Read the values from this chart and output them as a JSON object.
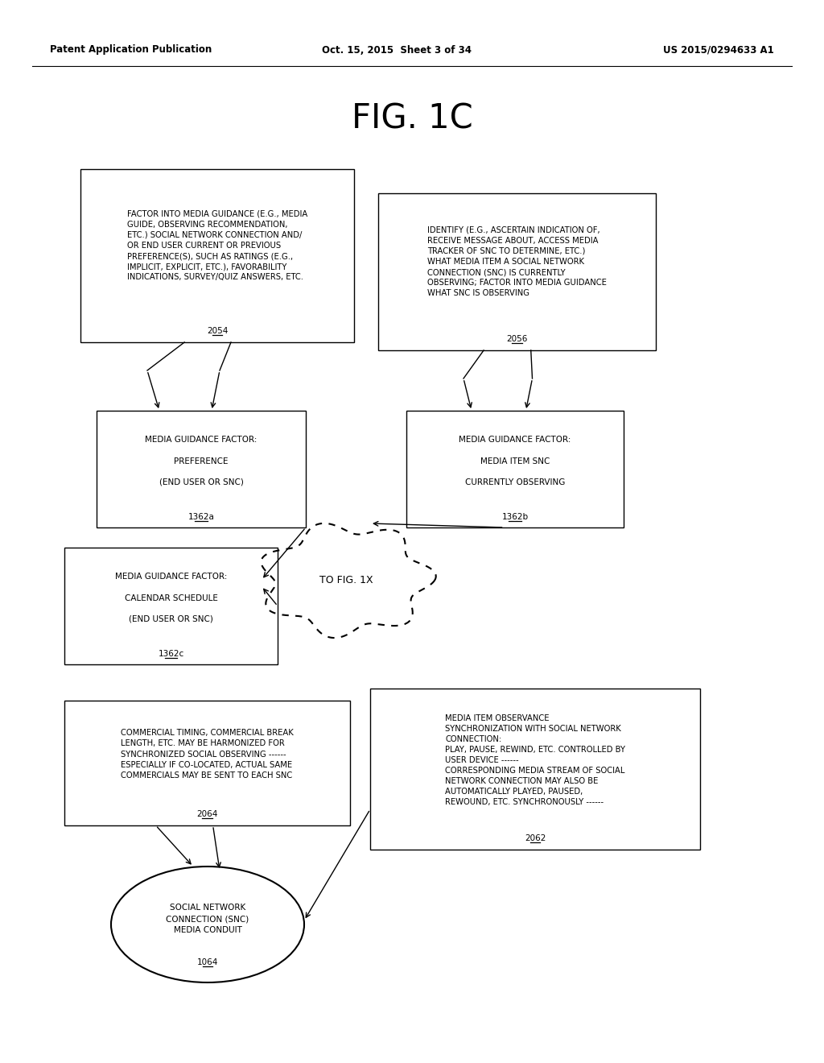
{
  "header_left": "Patent Application Publication",
  "header_center": "Oct. 15, 2015  Sheet 3 of 34",
  "header_right": "US 2015/0294633 A1",
  "title": "FIG. 1C",
  "box2054_lines": [
    "FACTOR INTO MEDIA GUIDANCE (E.G., MEDIA",
    "GUIDE, OBSERVING RECOMMENDATION,",
    "ETC.) SOCIAL NETWORK CONNECTION AND/",
    "OR END USER CURRENT OR PREVIOUS",
    "PREFERENCE(S), SUCH AS RATINGS (E.G.,",
    "IMPLICIT, EXPLICIT, ETC.), FAVORABILITY",
    "INDICATIONS, SURVEY/QUIZ ANSWERS, ETC."
  ],
  "box2054_label": "2054",
  "box2056_lines": [
    "IDENTIFY (E.G., ASCERTAIN INDICATION OF,",
    "RECEIVE MESSAGE ABOUT, ACCESS MEDIA",
    "TRACKER OF SNC TO DETERMINE, ETC.)",
    "WHAT MEDIA ITEM A SOCIAL NETWORK",
    "CONNECTION (SNC) IS CURRENTLY",
    "OBSERVING; FACTOR INTO MEDIA GUIDANCE",
    "WHAT SNC IS OBSERVING"
  ],
  "box2056_label": "2056",
  "box1362a_lines": [
    "MEDIA GUIDANCE FACTOR:",
    "",
    "PREFERENCE",
    "",
    "(END USER OR SNC)"
  ],
  "box1362a_label": "1362a",
  "box1362b_lines": [
    "MEDIA GUIDANCE FACTOR:",
    "",
    "MEDIA ITEM SNC",
    "",
    "CURRENTLY OBSERVING"
  ],
  "box1362b_label": "1362b",
  "box1362c_lines": [
    "MEDIA GUIDANCE FACTOR:",
    "",
    "CALENDAR SCHEDULE",
    "",
    "(END USER OR SNC)"
  ],
  "box1362c_label": "1362c",
  "cloud_label": "TO FIG. 1X",
  "box2064_lines": [
    "COMMERCIAL TIMING, COMMERCIAL BREAK",
    "LENGTH, ETC. MAY BE HARMONIZED FOR",
    "SYNCHRONIZED SOCIAL OBSERVING ------",
    "ESPECIALLY IF CO-LOCATED, ACTUAL SAME",
    "COMMERCIALS MAY BE SENT TO EACH SNC"
  ],
  "box2064_label": "2064",
  "box2062_lines": [
    "MEDIA ITEM OBSERVANCE",
    "SYNCHRONIZATION WITH SOCIAL NETWORK",
    "CONNECTION:",
    "PLAY, PAUSE, REWIND, ETC. CONTROLLED BY",
    "USER DEVICE ------",
    "CORRESPONDING MEDIA STREAM OF SOCIAL",
    "NETWORK CONNECTION MAY ALSO BE",
    "AUTOMATICALLY PLAYED, PAUSED,",
    "REWOUND, ETC. SYNCHRONOUSLY ------"
  ],
  "box2062_label": "2062",
  "oval_lines": [
    "SOCIAL NETWORK",
    "CONNECTION (SNC)",
    "MEDIA CONDUIT"
  ],
  "oval_label": "1064",
  "bg_color": "#ffffff",
  "text_color": "#000000"
}
